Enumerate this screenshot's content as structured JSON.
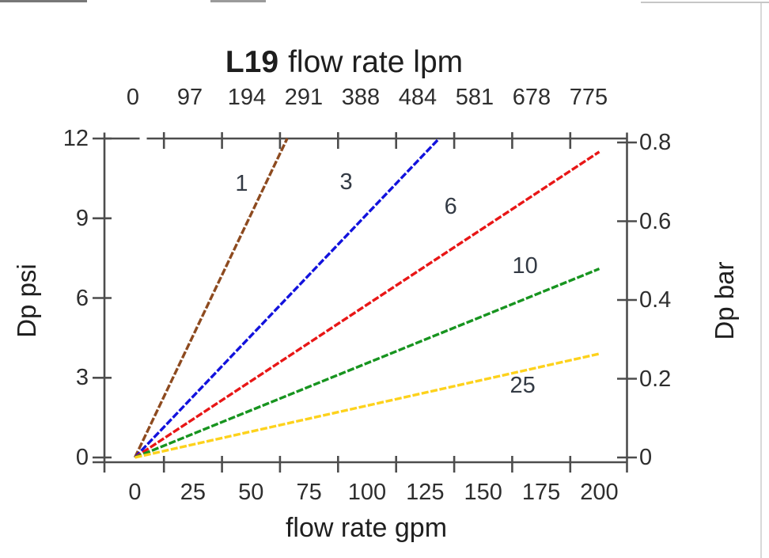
{
  "page": {
    "background": "#ffffff"
  },
  "chart_data": {
    "type": "line",
    "title": {
      "model": "L19",
      "suffix": "flow rate lpm"
    },
    "grid": false,
    "legend": "inline curve labels",
    "axes": {
      "top": {
        "unit": "lpm",
        "tick_labels": [
          "0",
          "97",
          "194",
          "291",
          "388",
          "484",
          "581",
          "678",
          "775"
        ]
      },
      "bottom": {
        "title": "flow rate gpm",
        "unit": "gpm",
        "tick_labels": [
          "0",
          "25",
          "50",
          "75",
          "100",
          "125",
          "150",
          "175",
          "200"
        ],
        "range_gpm": [
          0,
          212
        ]
      },
      "left": {
        "title": "Dp psi",
        "unit": "psi",
        "tick_labels": [
          "12",
          "9",
          "6",
          "3",
          "0"
        ],
        "range_psi": [
          0,
          12.15
        ]
      },
      "right": {
        "title": "Dp bar",
        "unit": "bar",
        "tick_labels": [
          "0.8",
          "0.6",
          "0.4",
          "0.2",
          "0"
        ],
        "range_bar": [
          0,
          0.82
        ]
      }
    },
    "series": [
      {
        "label": "1",
        "color": "#8d4a1f",
        "points_gpm_psi": [
          [
            0,
            0
          ],
          [
            65.6,
            12
          ]
        ],
        "label_pos_gpm_psi": [
          46,
          10.3
        ]
      },
      {
        "label": "3",
        "color": "#1212dd",
        "points_gpm_psi": [
          [
            0,
            0
          ],
          [
            131,
            12
          ]
        ],
        "label_pos_gpm_psi": [
          91,
          10.35
        ]
      },
      {
        "label": "6",
        "color": "#e81616",
        "points_gpm_psi": [
          [
            0,
            0
          ],
          [
            200,
            11.5
          ]
        ],
        "label_pos_gpm_psi": [
          136,
          9.45
        ]
      },
      {
        "label": "10",
        "color": "#17941f",
        "points_gpm_psi": [
          [
            0,
            0
          ],
          [
            200,
            7.1
          ]
        ],
        "label_pos_gpm_psi": [
          168,
          7.2
        ]
      },
      {
        "label": "25",
        "color": "#fdd21c",
        "points_gpm_psi": [
          [
            0,
            0
          ],
          [
            200,
            3.9
          ]
        ],
        "label_pos_gpm_psi": [
          167,
          2.7
        ]
      }
    ]
  }
}
